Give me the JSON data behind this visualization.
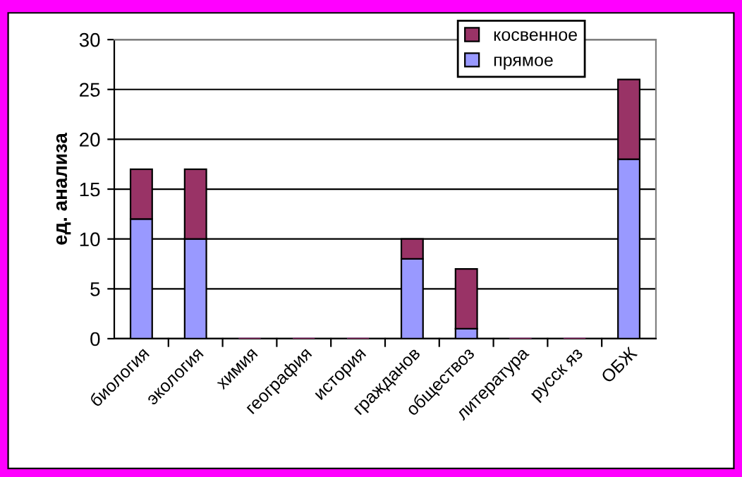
{
  "chart_data": {
    "type": "bar",
    "stacked": true,
    "ylabel": "ед. анализа",
    "categories": [
      "биология",
      "экология",
      "химия",
      "география",
      "история",
      "гражданов",
      "обществоз",
      "литература",
      "русск яз",
      "ОБЖ"
    ],
    "series": [
      {
        "name": "прямое",
        "color": "#9999ff",
        "values": [
          12,
          10,
          0,
          0,
          0,
          8,
          1,
          0,
          0,
          18
        ]
      },
      {
        "name": "косвенное",
        "color": "#993366",
        "values": [
          5,
          7,
          0,
          0,
          0,
          2,
          6,
          0,
          0,
          8
        ]
      }
    ],
    "ylim": [
      0,
      30
    ],
    "yticks": [
      0,
      5,
      10,
      15,
      20,
      25,
      30
    ],
    "grid": "y",
    "legend": "top right"
  }
}
